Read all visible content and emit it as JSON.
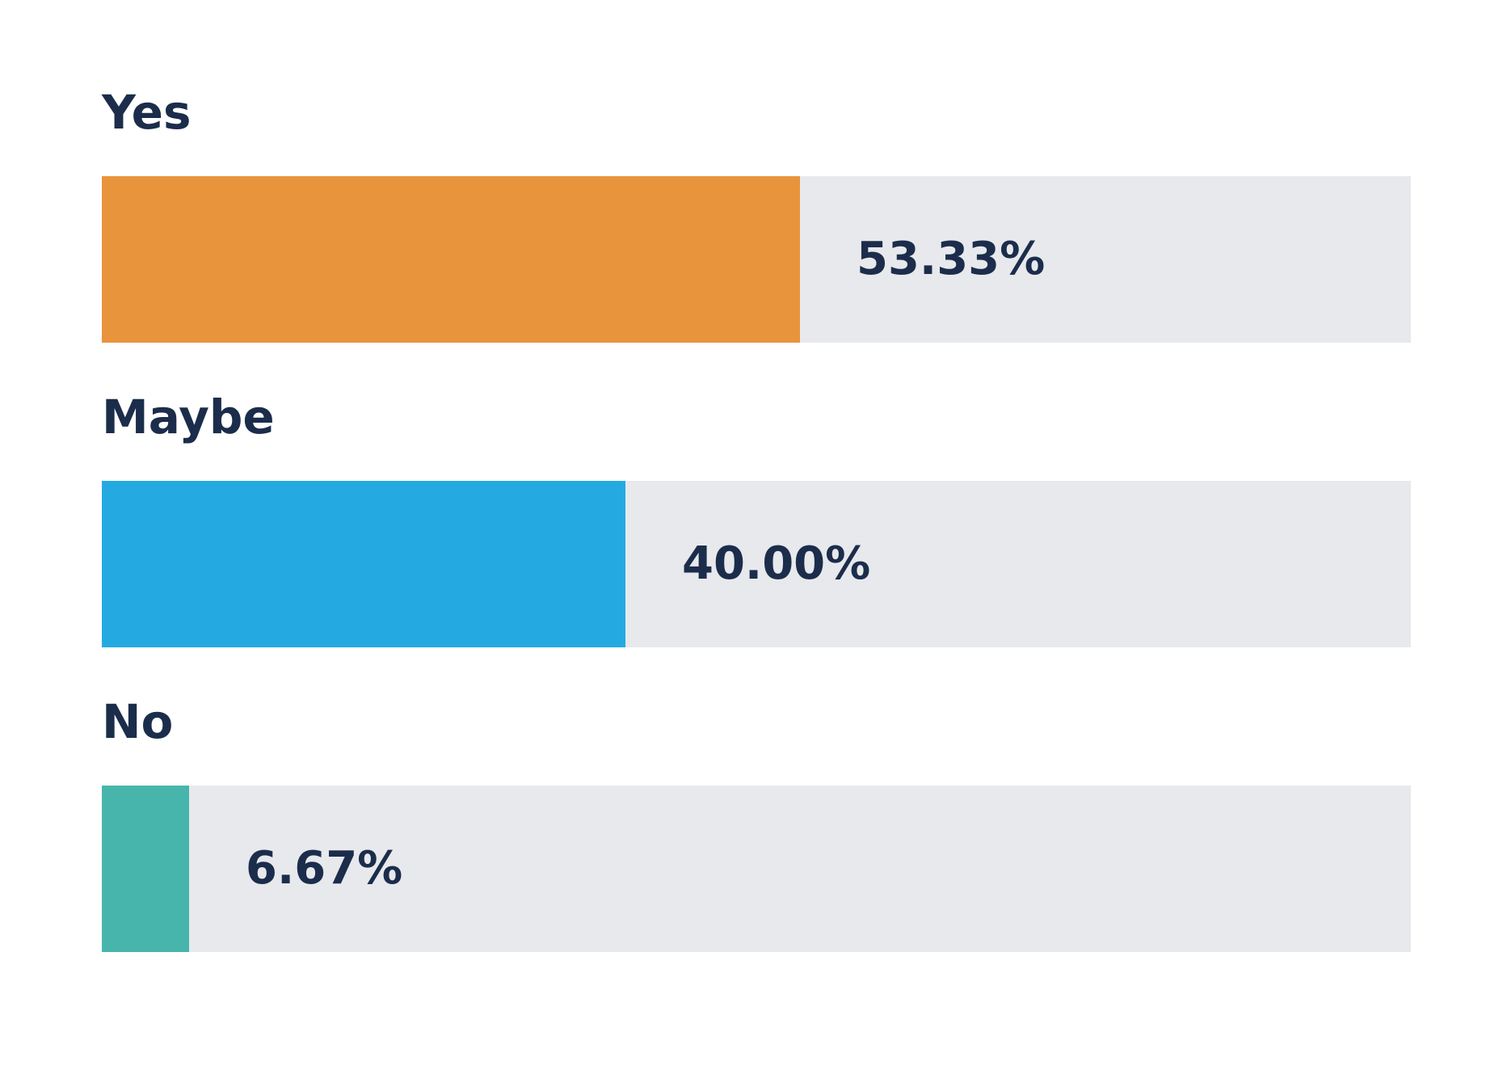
{
  "chart_data": {
    "type": "bar",
    "orientation": "horizontal",
    "categories": [
      "Yes",
      "Maybe",
      "No"
    ],
    "values": [
      53.33,
      40.0,
      6.67
    ],
    "value_labels": [
      "53.33%",
      "40.00%",
      "6.67%"
    ],
    "xlim": [
      0,
      100
    ],
    "colors": [
      "#e8943c",
      "#24aae1",
      "#47b5ab"
    ],
    "track_color": "#e8e9ed",
    "title": "",
    "xlabel": "",
    "ylabel": "",
    "grid": false,
    "legend": "none"
  }
}
